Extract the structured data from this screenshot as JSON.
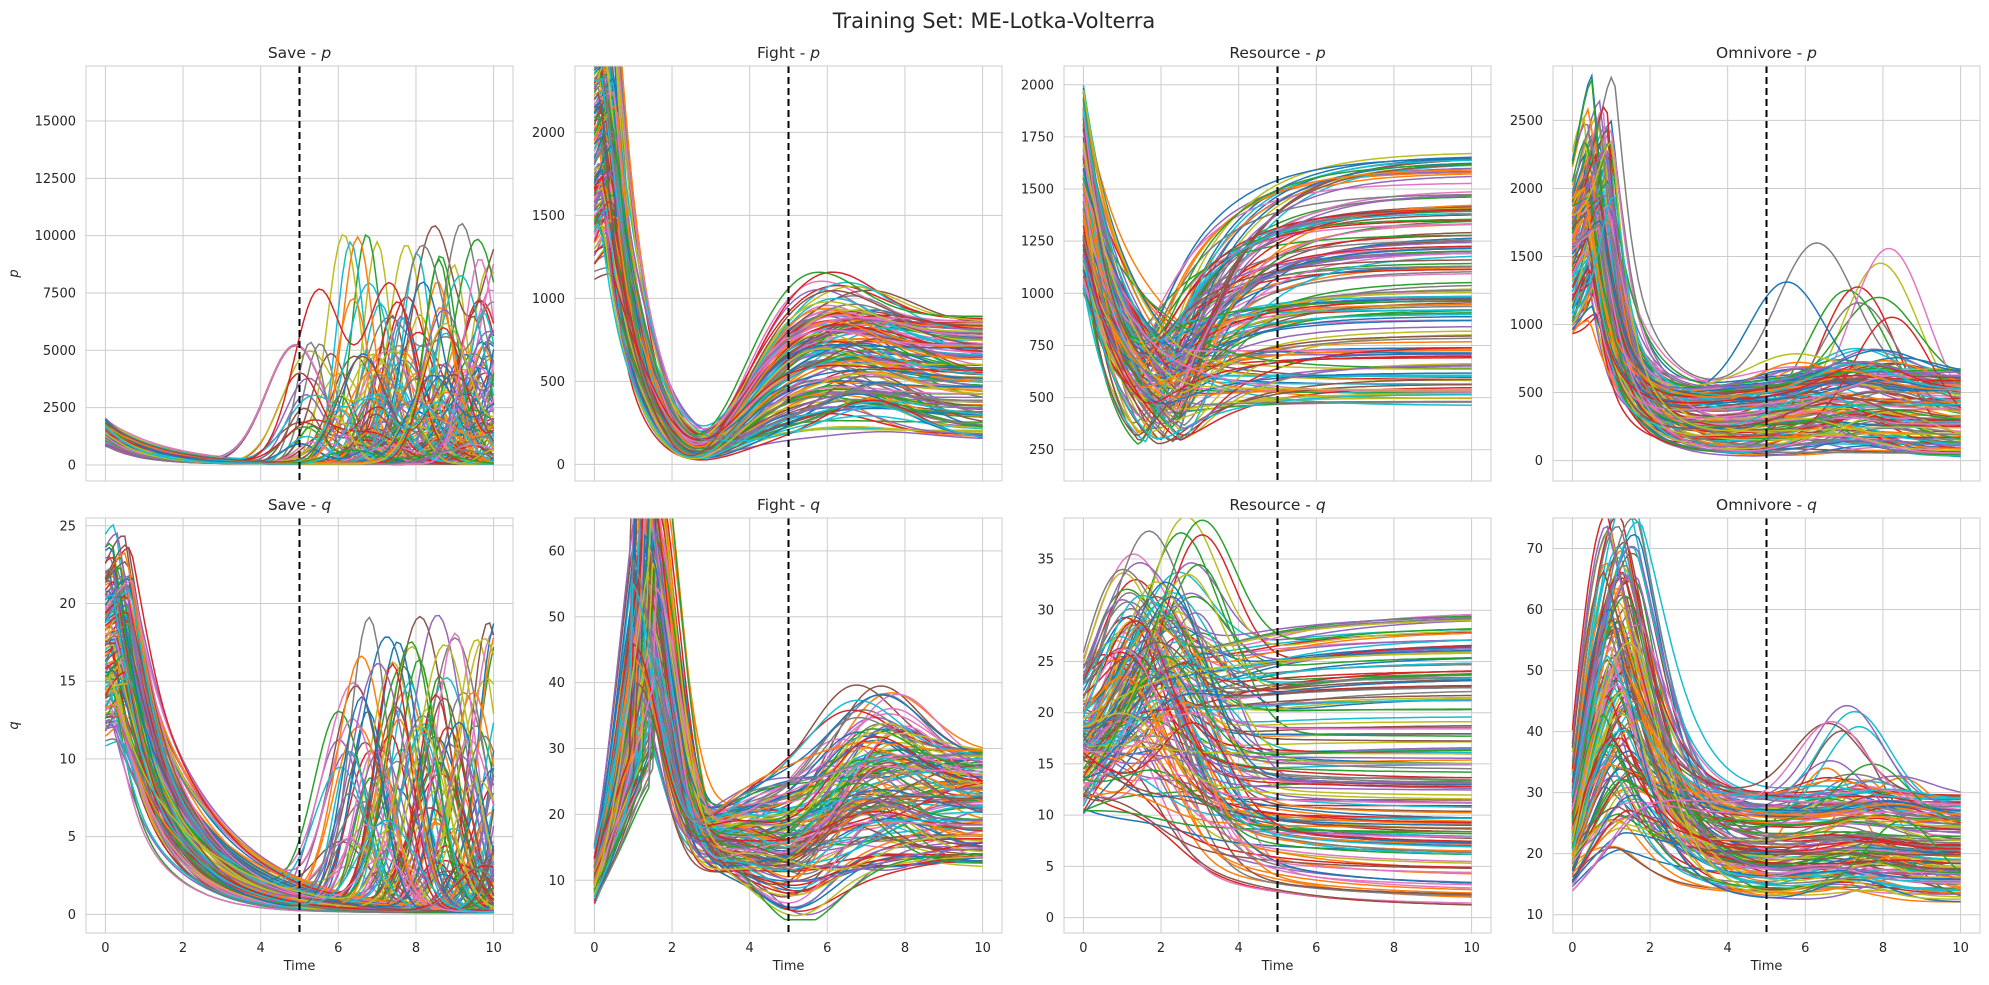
{
  "figure_title": "Training Set: ME-Lotka-Volterra",
  "chart_data": [
    {
      "type": "line",
      "id": "save-p",
      "row": 0,
      "col": 0,
      "title": "Save - ",
      "var": "p",
      "ylabel": "p",
      "xlabel": "",
      "xlim": [
        -0.5,
        10.5
      ],
      "ylim": [
        -700,
        17400
      ],
      "xticks": [
        0,
        2,
        4,
        6,
        8,
        10
      ],
      "yticks": [
        0,
        2500,
        5000,
        7500,
        10000,
        12500,
        15000
      ],
      "xtick_labels_visible": false,
      "vline_x": 5,
      "model": "save_p",
      "series_count": 150
    },
    {
      "type": "line",
      "id": "fight-p",
      "row": 0,
      "col": 1,
      "title": "Fight - ",
      "var": "p",
      "ylabel": "",
      "xlabel": "",
      "xlim": [
        -0.5,
        10.5
      ],
      "ylim": [
        -100,
        2400
      ],
      "xticks": [
        0,
        2,
        4,
        6,
        8,
        10
      ],
      "yticks": [
        0,
        500,
        1000,
        1500,
        2000
      ],
      "xtick_labels_visible": false,
      "vline_x": 5,
      "model": "fight_p",
      "series_count": 150
    },
    {
      "type": "line",
      "id": "resource-p",
      "row": 0,
      "col": 2,
      "title": "Resource - ",
      "var": "p",
      "ylabel": "",
      "xlabel": "",
      "xlim": [
        -0.5,
        10.5
      ],
      "ylim": [
        100,
        2090
      ],
      "xticks": [
        0,
        2,
        4,
        6,
        8,
        10
      ],
      "yticks": [
        250,
        500,
        750,
        1000,
        1250,
        1500,
        1750,
        2000
      ],
      "xtick_labels_visible": false,
      "vline_x": 5,
      "model": "resource_p",
      "series_count": 150
    },
    {
      "type": "line",
      "id": "omnivore-p",
      "row": 0,
      "col": 3,
      "title": "Omnivore - ",
      "var": "p",
      "ylabel": "",
      "xlabel": "",
      "xlim": [
        -0.5,
        10.5
      ],
      "ylim": [
        -150,
        2900
      ],
      "xticks": [
        0,
        2,
        4,
        6,
        8,
        10
      ],
      "yticks": [
        0,
        500,
        1000,
        1500,
        2000,
        2500
      ],
      "xtick_labels_visible": false,
      "vline_x": 5,
      "model": "omnivore_p",
      "series_count": 150
    },
    {
      "type": "line",
      "id": "save-q",
      "row": 1,
      "col": 0,
      "title": "Save - ",
      "var": "q",
      "ylabel": "q",
      "xlabel": "Time",
      "xlim": [
        -0.5,
        10.5
      ],
      "ylim": [
        -1.2,
        25.5
      ],
      "xticks": [
        0,
        2,
        4,
        6,
        8,
        10
      ],
      "yticks": [
        0,
        5,
        10,
        15,
        20,
        25
      ],
      "xtick_labels_visible": true,
      "vline_x": 5,
      "model": "save_q",
      "series_count": 150
    },
    {
      "type": "line",
      "id": "fight-q",
      "row": 1,
      "col": 1,
      "title": "Fight - ",
      "var": "q",
      "ylabel": "",
      "xlabel": "Time",
      "xlim": [
        -0.5,
        10.5
      ],
      "ylim": [
        2,
        65
      ],
      "xticks": [
        0,
        2,
        4,
        6,
        8,
        10
      ],
      "yticks": [
        10,
        20,
        30,
        40,
        50,
        60
      ],
      "xtick_labels_visible": true,
      "vline_x": 5,
      "model": "fight_q",
      "series_count": 150
    },
    {
      "type": "line",
      "id": "resource-q",
      "row": 1,
      "col": 2,
      "title": "Resource - ",
      "var": "q",
      "ylabel": "",
      "xlabel": "Time",
      "xlim": [
        -0.5,
        10.5
      ],
      "ylim": [
        -1.5,
        39
      ],
      "xticks": [
        0,
        2,
        4,
        6,
        8,
        10
      ],
      "yticks": [
        0,
        5,
        10,
        15,
        20,
        25,
        30,
        35
      ],
      "xtick_labels_visible": true,
      "vline_x": 5,
      "model": "resource_q",
      "series_count": 150
    },
    {
      "type": "line",
      "id": "omnivore-q",
      "row": 1,
      "col": 3,
      "title": "Omnivore - ",
      "var": "q",
      "ylabel": "",
      "xlabel": "Time",
      "xlim": [
        -0.5,
        10.5
      ],
      "ylim": [
        7,
        75
      ],
      "xticks": [
        0,
        2,
        4,
        6,
        8,
        10
      ],
      "yticks": [
        10,
        20,
        30,
        40,
        50,
        60,
        70
      ],
      "xtick_labels_visible": true,
      "vline_x": 5,
      "model": "omnivore_q",
      "series_count": 150
    }
  ],
  "palette": [
    "#1f77b4",
    "#ff7f0e",
    "#2ca02c",
    "#d62728",
    "#9467bd",
    "#8c564b",
    "#e377c2",
    "#7f7f7f",
    "#bcbd22",
    "#17becf"
  ]
}
